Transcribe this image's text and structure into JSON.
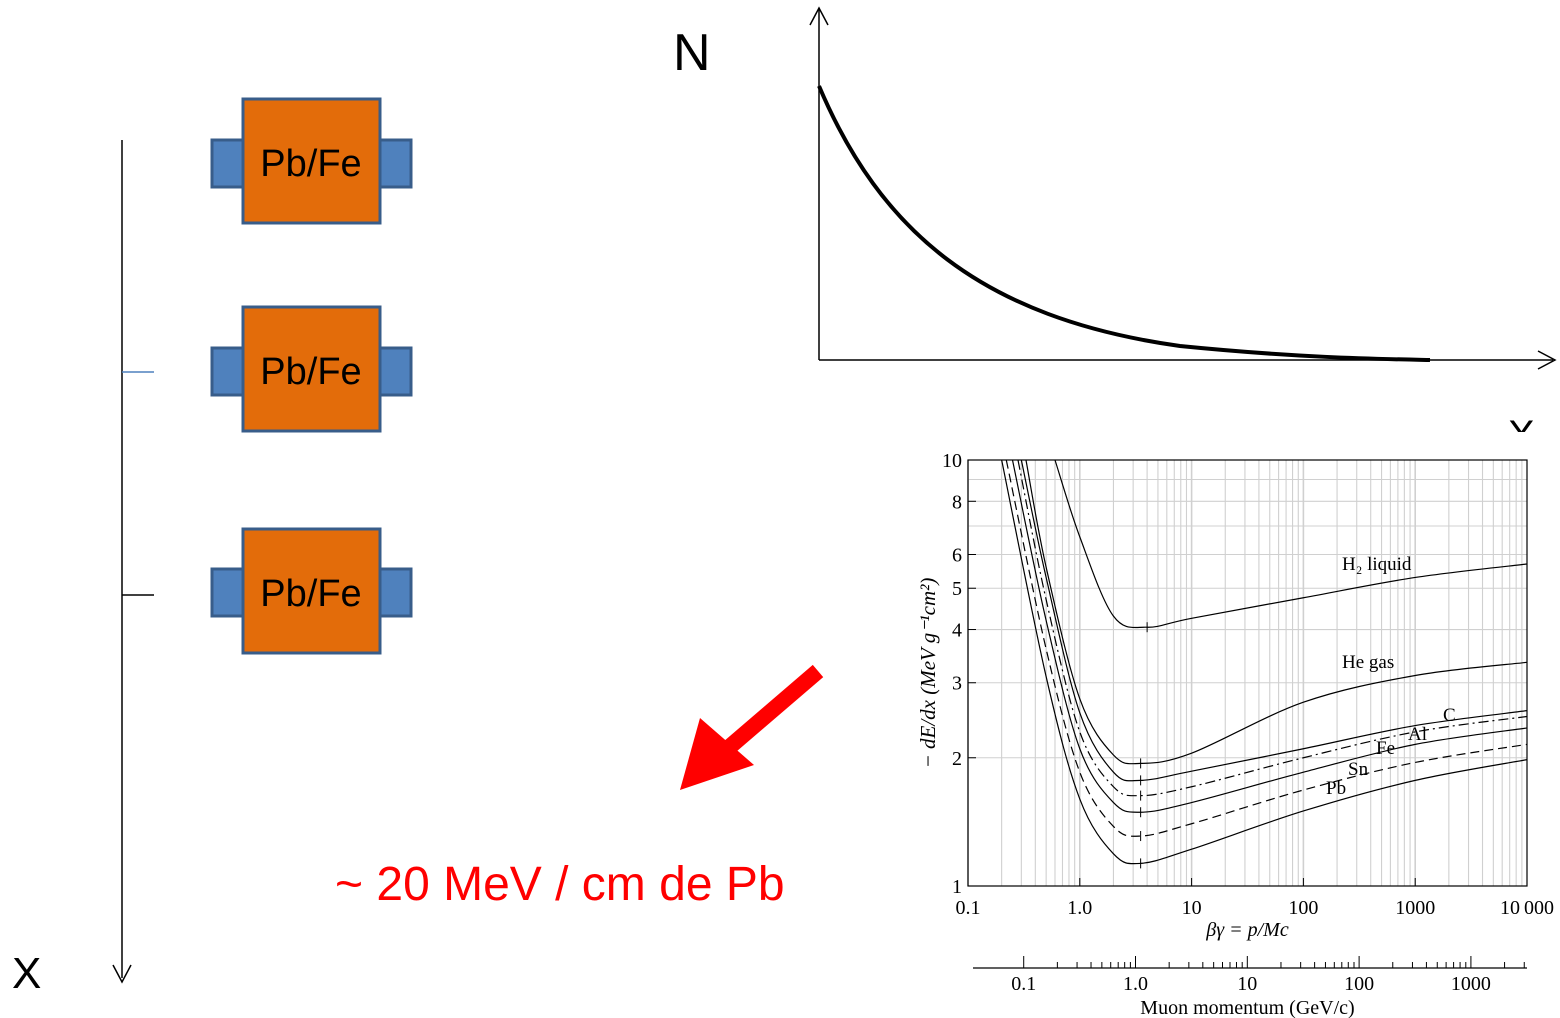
{
  "left_panel": {
    "axis_label": "X",
    "blocks": [
      {
        "label": "Pb/Fe"
      },
      {
        "label": "Pb/Fe"
      },
      {
        "label": "Pb/Fe"
      }
    ],
    "colors": {
      "absorber": "#E36C0A",
      "detector": "#4F81BD",
      "border": "#385D8A"
    }
  },
  "attenuation_plot": {
    "y_label": "N",
    "x_label": "X"
  },
  "annotation": {
    "text": "~ 20 MeV / cm de Pb",
    "color": "#FF0000"
  },
  "chart_data": {
    "type": "line",
    "x_scale": "log",
    "y_scale": "log",
    "xlim": [
      0.1,
      10000
    ],
    "ylim": [
      1,
      10
    ],
    "x_ticks": [
      "0.1",
      "1.0",
      "10",
      "100",
      "1000",
      "10 000"
    ],
    "y_ticks": [
      "1",
      "2",
      "3",
      "4",
      "5",
      "6",
      "8",
      "10"
    ],
    "xlabel": "βγ = p/Mc",
    "ylabel": "− dE/dx (MeV g⁻¹cm²)",
    "secondary_axis": {
      "label": "Muon momentum (GeV/c)",
      "ticks": [
        "0.1",
        "1.0",
        "10",
        "100",
        "1000"
      ],
      "tick_values": [
        0.1,
        1.0,
        10,
        100,
        1000
      ]
    },
    "grid": true,
    "series": [
      {
        "name": "H₂ liquid",
        "style": "solid",
        "points": [
          [
            0.6,
            10
          ],
          [
            1.0,
            6.6
          ],
          [
            2.0,
            4.3
          ],
          [
            4.0,
            4.05
          ],
          [
            10,
            4.25
          ],
          [
            100,
            4.75
          ],
          [
            1000,
            5.3
          ],
          [
            10000,
            5.7
          ]
        ]
      },
      {
        "name": "He gas",
        "style": "solid",
        "points": [
          [
            0.33,
            10
          ],
          [
            0.5,
            5.6
          ],
          [
            1.0,
            2.75
          ],
          [
            2.0,
            2.03
          ],
          [
            3.5,
            1.94
          ],
          [
            10,
            2.05
          ],
          [
            100,
            2.7
          ],
          [
            1000,
            3.12
          ],
          [
            10000,
            3.35
          ]
        ]
      },
      {
        "name": "C",
        "style": "solid",
        "points": [
          [
            0.3,
            10
          ],
          [
            0.5,
            5.3
          ],
          [
            1.0,
            2.55
          ],
          [
            2.0,
            1.85
          ],
          [
            3.5,
            1.77
          ],
          [
            10,
            1.86
          ],
          [
            100,
            2.1
          ],
          [
            1000,
            2.38
          ],
          [
            10000,
            2.58
          ]
        ]
      },
      {
        "name": "Al",
        "style": "dashdot",
        "points": [
          [
            0.28,
            10
          ],
          [
            0.5,
            4.7
          ],
          [
            1.0,
            2.3
          ],
          [
            2.0,
            1.71
          ],
          [
            3.5,
            1.63
          ],
          [
            10,
            1.71
          ],
          [
            100,
            2.0
          ],
          [
            1000,
            2.3
          ],
          [
            10000,
            2.5
          ]
        ]
      },
      {
        "name": "Fe",
        "style": "solid",
        "points": [
          [
            0.25,
            10
          ],
          [
            0.5,
            4.2
          ],
          [
            1.0,
            2.1
          ],
          [
            2.0,
            1.57
          ],
          [
            3.5,
            1.49
          ],
          [
            10,
            1.57
          ],
          [
            100,
            1.85
          ],
          [
            1000,
            2.15
          ],
          [
            10000,
            2.35
          ]
        ]
      },
      {
        "name": "Sn",
        "style": "dashed",
        "points": [
          [
            0.22,
            10
          ],
          [
            0.5,
            3.6
          ],
          [
            1.0,
            1.85
          ],
          [
            2.0,
            1.38
          ],
          [
            3.5,
            1.31
          ],
          [
            10,
            1.4
          ],
          [
            100,
            1.68
          ],
          [
            1000,
            1.95
          ],
          [
            10000,
            2.15
          ]
        ]
      },
      {
        "name": "Pb",
        "style": "solid",
        "points": [
          [
            0.2,
            10
          ],
          [
            0.5,
            3.1
          ],
          [
            1.0,
            1.6
          ],
          [
            2.0,
            1.19
          ],
          [
            3.5,
            1.13
          ],
          [
            10,
            1.22
          ],
          [
            100,
            1.5
          ],
          [
            1000,
            1.77
          ],
          [
            10000,
            1.98
          ]
        ]
      }
    ]
  }
}
